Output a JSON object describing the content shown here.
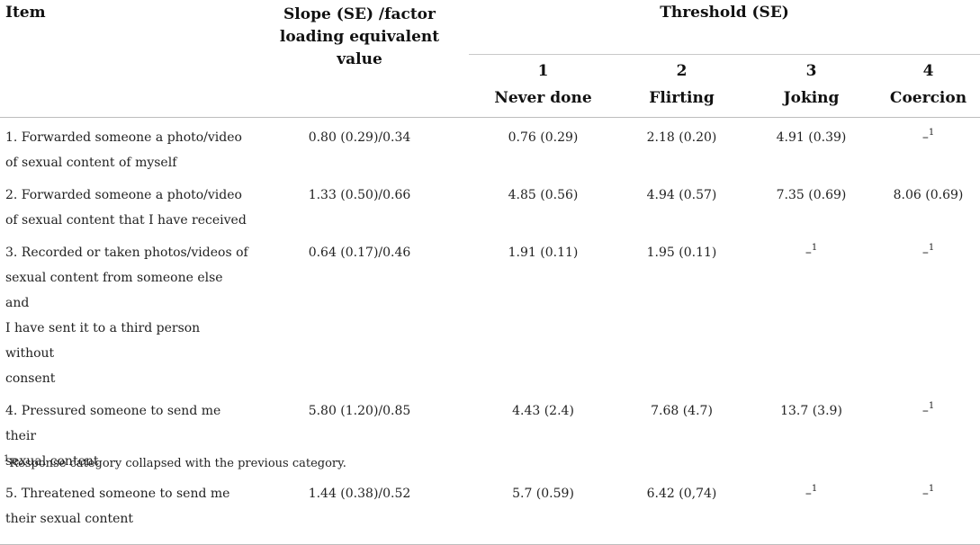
{
  "header": {
    "item": "Item",
    "slope_line1": "Slope (SE) /factor",
    "slope_line2": "loading equivalent",
    "slope_line3": "value",
    "threshold": "Threshold (SE)",
    "thresholds": [
      {
        "num": "1",
        "label": "Never done"
      },
      {
        "num": "2",
        "label": "Flirting"
      },
      {
        "num": "3",
        "label": "Joking"
      },
      {
        "num": "4",
        "label": "Coercion"
      }
    ]
  },
  "rows": [
    {
      "lines": [
        "1. Forwarded someone a photo/video",
        "of sexual content of myself"
      ],
      "slope": "0.80 (0.29)/0.34",
      "t1": "0.76 (0.29)",
      "t2": "2.18 (0.20)",
      "t3": "4.91 (0.39)",
      "t4": "–"
    },
    {
      "lines": [
        "2. Forwarded someone a photo/video",
        "of sexual content that I have received"
      ],
      "slope": "1.33 (0.50)/0.66",
      "t1": "4.85 (0.56)",
      "t2": "4.94 (0.57)",
      "t3": "7.35 (0.69)",
      "t4": "8.06 (0.69)"
    },
    {
      "lines": [
        "3. Recorded or taken photos/videos of",
        "sexual content from someone else and",
        "I have sent it to a third person without",
        "consent"
      ],
      "slope": "0.64 (0.17)/0.46",
      "t1": "1.91 (0.11)",
      "t2": "1.95 (0.11)",
      "t3": "–",
      "t4": "–"
    },
    {
      "lines": [
        "4. Pressured someone to send me their",
        "sexual content"
      ],
      "slope": "5.80 (1.20)/0.85",
      "t1": "4.43 (2.4)",
      "t2": "7.68 (4.7)",
      "t3": "13.7 (3.9)",
      "t4": "–"
    },
    {
      "lines": [
        "5. Threatened someone to send me",
        "their sexual content"
      ],
      "slope": "1.44 (0.38)/0.52",
      "t1": "5.7 (0.59)",
      "t2": "6.42 (0,74)",
      "t3": "–",
      "t4": "–"
    }
  ],
  "footnote_marker": "1",
  "footnote": "Response category collapsed with the previous category."
}
